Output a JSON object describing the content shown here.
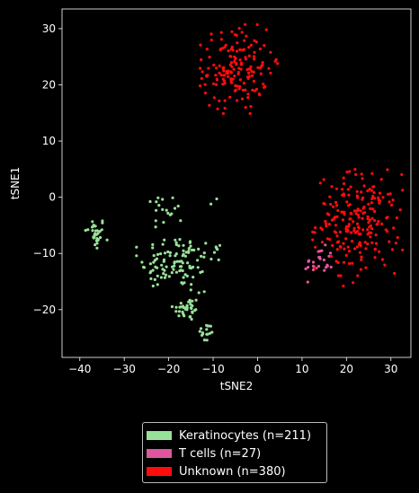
{
  "chart_data": {
    "type": "scatter",
    "xlabel": "tSNE2",
    "ylabel": "tSNE1",
    "xlim": [
      -44,
      34.5
    ],
    "ylim": [
      -28.5,
      33.5
    ],
    "xticks": [
      -40,
      -30,
      -20,
      -10,
      0,
      10,
      20,
      30
    ],
    "yticks": [
      -20,
      -10,
      0,
      10,
      20,
      30
    ],
    "grid": false,
    "legend_position": "bottom-outside",
    "series": [
      {
        "name": "Keratinocytes (n=211)",
        "color": "#98e198",
        "clusters": [
          {
            "center": [
              -36.5,
              -6.5
            ],
            "spread": [
              1.2,
              1.5
            ],
            "count": 30
          },
          {
            "center": [
              -18,
              -11.5
            ],
            "spread": [
              4.2,
              2.3
            ],
            "count": 95
          },
          {
            "center": [
              -16,
              -19.8
            ],
            "spread": [
              1.5,
              1.1
            ],
            "count": 35
          },
          {
            "center": [
              -11.5,
              -24.2
            ],
            "spread": [
              0.9,
              0.9
            ],
            "count": 15
          },
          {
            "center": [
              -20,
              -2.2
            ],
            "spread": [
              1.9,
              1.4
            ],
            "count": 16
          },
          {
            "center": [
              -9.3,
              -9.2
            ],
            "spread": [
              0.5,
              0.5
            ],
            "count": 5
          }
        ],
        "extra_points": [
          [
            -10.5,
            -1.2
          ],
          [
            -9.2,
            -0.3
          ],
          [
            -22.8,
            -0.8
          ],
          [
            -22.4,
            -0.1
          ],
          [
            -25.5,
            -12.5
          ],
          [
            -23.5,
            -15.8
          ],
          [
            -12,
            -16.8
          ],
          [
            -11.5,
            -22.8
          ],
          [
            -15,
            -16.5
          ],
          [
            -13.2,
            -17
          ],
          [
            -22.5,
            -14
          ],
          [
            -24,
            -14.5
          ],
          [
            -21,
            -7.6
          ],
          [
            -17.5,
            -7.5
          ],
          [
            -15.2,
            -8.1
          ]
        ]
      },
      {
        "name": "T cells (n=27)",
        "color": "#e0569e",
        "clusters": [
          {
            "center": [
              13.8,
              -11.8
            ],
            "spread": [
              1.6,
              1.5
            ],
            "count": 27
          }
        ],
        "extra_points": []
      },
      {
        "name": "Unknown (n=380)",
        "color": "#ff0d0d",
        "clusters": [
          {
            "center": [
              -5,
              22.8
            ],
            "spread": [
              3.6,
              3.6
            ],
            "count": 160
          },
          {
            "center": [
              22.5,
              -4.5
            ],
            "spread": [
              4.6,
              4.3
            ],
            "count": 215
          }
        ],
        "extra_points": [
          [
            4.2,
            24.5
          ],
          [
            4.5,
            23.8
          ],
          [
            4,
            24.2
          ],
          [
            19.3,
            -15.8
          ],
          [
            21.5,
            -15.2
          ]
        ]
      }
    ]
  }
}
